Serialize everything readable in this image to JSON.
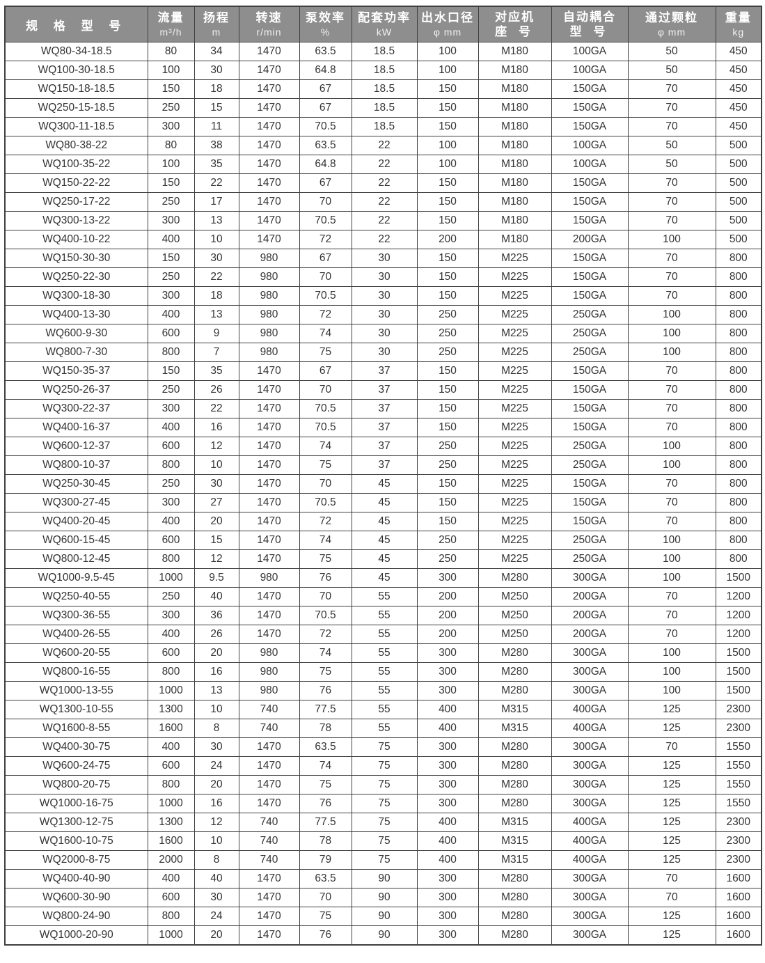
{
  "colors": {
    "header_bg": "#8e8e8e",
    "header_text": "#ffffff",
    "border": "#3f3f3f",
    "text": "#333333",
    "page_bg": "#ffffff"
  },
  "table": {
    "columns": [
      {
        "id": "model",
        "label": "规 格 型 号",
        "unit": ""
      },
      {
        "id": "flow",
        "label": "流量",
        "unit": "m³/h"
      },
      {
        "id": "head",
        "label": "扬程",
        "unit": "m"
      },
      {
        "id": "speed",
        "label": "转速",
        "unit": "r/min"
      },
      {
        "id": "pump-efficiency",
        "label": "泵效率",
        "unit": "%"
      },
      {
        "id": "motor-power",
        "label": "配套功率",
        "unit": "kW"
      },
      {
        "id": "outlet-diameter",
        "label": "出水口径",
        "unit": "φ mm"
      },
      {
        "id": "frame-size",
        "label": "对应机",
        "unit": "座 号"
      },
      {
        "id": "auto-coupling",
        "label": "自动耦合",
        "unit": "型 号"
      },
      {
        "id": "particle-size",
        "label": "通过颗粒",
        "unit": "φ mm"
      },
      {
        "id": "weight",
        "label": "重量",
        "unit": "kg"
      }
    ],
    "rows": [
      [
        "WQ80-34-18.5",
        "80",
        "34",
        "1470",
        "63.5",
        "18.5",
        "100",
        "M180",
        "100GA",
        "50",
        "450"
      ],
      [
        "WQ100-30-18.5",
        "100",
        "30",
        "1470",
        "64.8",
        "18.5",
        "100",
        "M180",
        "100GA",
        "50",
        "450"
      ],
      [
        "WQ150-18-18.5",
        "150",
        "18",
        "1470",
        "67",
        "18.5",
        "150",
        "M180",
        "150GA",
        "70",
        "450"
      ],
      [
        "WQ250-15-18.5",
        "250",
        "15",
        "1470",
        "67",
        "18.5",
        "150",
        "M180",
        "150GA",
        "70",
        "450"
      ],
      [
        "WQ300-11-18.5",
        "300",
        "11",
        "1470",
        "70.5",
        "18.5",
        "150",
        "M180",
        "150GA",
        "70",
        "450"
      ],
      [
        "WQ80-38-22",
        "80",
        "38",
        "1470",
        "63.5",
        "22",
        "100",
        "M180",
        "100GA",
        "50",
        "500"
      ],
      [
        "WQ100-35-22",
        "100",
        "35",
        "1470",
        "64.8",
        "22",
        "100",
        "M180",
        "100GA",
        "50",
        "500"
      ],
      [
        "WQ150-22-22",
        "150",
        "22",
        "1470",
        "67",
        "22",
        "150",
        "M180",
        "150GA",
        "70",
        "500"
      ],
      [
        "WQ250-17-22",
        "250",
        "17",
        "1470",
        "70",
        "22",
        "150",
        "M180",
        "150GA",
        "70",
        "500"
      ],
      [
        "WQ300-13-22",
        "300",
        "13",
        "1470",
        "70.5",
        "22",
        "150",
        "M180",
        "150GA",
        "70",
        "500"
      ],
      [
        "WQ400-10-22",
        "400",
        "10",
        "1470",
        "72",
        "22",
        "200",
        "M180",
        "200GA",
        "100",
        "500"
      ],
      [
        "WQ150-30-30",
        "150",
        "30",
        "980",
        "67",
        "30",
        "150",
        "M225",
        "150GA",
        "70",
        "800"
      ],
      [
        "WQ250-22-30",
        "250",
        "22",
        "980",
        "70",
        "30",
        "150",
        "M225",
        "150GA",
        "70",
        "800"
      ],
      [
        "WQ300-18-30",
        "300",
        "18",
        "980",
        "70.5",
        "30",
        "150",
        "M225",
        "150GA",
        "70",
        "800"
      ],
      [
        "WQ400-13-30",
        "400",
        "13",
        "980",
        "72",
        "30",
        "250",
        "M225",
        "250GA",
        "100",
        "800"
      ],
      [
        "WQ600-9-30",
        "600",
        "9",
        "980",
        "74",
        "30",
        "250",
        "M225",
        "250GA",
        "100",
        "800"
      ],
      [
        "WQ800-7-30",
        "800",
        "7",
        "980",
        "75",
        "30",
        "250",
        "M225",
        "250GA",
        "100",
        "800"
      ],
      [
        "WQ150-35-37",
        "150",
        "35",
        "1470",
        "67",
        "37",
        "150",
        "M225",
        "150GA",
        "70",
        "800"
      ],
      [
        "WQ250-26-37",
        "250",
        "26",
        "1470",
        "70",
        "37",
        "150",
        "M225",
        "150GA",
        "70",
        "800"
      ],
      [
        "WQ300-22-37",
        "300",
        "22",
        "1470",
        "70.5",
        "37",
        "150",
        "M225",
        "150GA",
        "70",
        "800"
      ],
      [
        "WQ400-16-37",
        "400",
        "16",
        "1470",
        "70.5",
        "37",
        "150",
        "M225",
        "150GA",
        "70",
        "800"
      ],
      [
        "WQ600-12-37",
        "600",
        "12",
        "1470",
        "74",
        "37",
        "250",
        "M225",
        "250GA",
        "100",
        "800"
      ],
      [
        "WQ800-10-37",
        "800",
        "10",
        "1470",
        "75",
        "37",
        "250",
        "M225",
        "250GA",
        "100",
        "800"
      ],
      [
        "WQ250-30-45",
        "250",
        "30",
        "1470",
        "70",
        "45",
        "150",
        "M225",
        "150GA",
        "70",
        "800"
      ],
      [
        "WQ300-27-45",
        "300",
        "27",
        "1470",
        "70.5",
        "45",
        "150",
        "M225",
        "150GA",
        "70",
        "800"
      ],
      [
        "WQ400-20-45",
        "400",
        "20",
        "1470",
        "72",
        "45",
        "150",
        "M225",
        "150GA",
        "70",
        "800"
      ],
      [
        "WQ600-15-45",
        "600",
        "15",
        "1470",
        "74",
        "45",
        "250",
        "M225",
        "250GA",
        "100",
        "800"
      ],
      [
        "WQ800-12-45",
        "800",
        "12",
        "1470",
        "75",
        "45",
        "250",
        "M225",
        "250GA",
        "100",
        "800"
      ],
      [
        "WQ1000-9.5-45",
        "1000",
        "9.5",
        "980",
        "76",
        "45",
        "300",
        "M280",
        "300GA",
        "100",
        "1500"
      ],
      [
        "WQ250-40-55",
        "250",
        "40",
        "1470",
        "70",
        "55",
        "200",
        "M250",
        "200GA",
        "70",
        "1200"
      ],
      [
        "WQ300-36-55",
        "300",
        "36",
        "1470",
        "70.5",
        "55",
        "200",
        "M250",
        "200GA",
        "70",
        "1200"
      ],
      [
        "WQ400-26-55",
        "400",
        "26",
        "1470",
        "72",
        "55",
        "200",
        "M250",
        "200GA",
        "70",
        "1200"
      ],
      [
        "WQ600-20-55",
        "600",
        "20",
        "980",
        "74",
        "55",
        "300",
        "M280",
        "300GA",
        "100",
        "1500"
      ],
      [
        "WQ800-16-55",
        "800",
        "16",
        "980",
        "75",
        "55",
        "300",
        "M280",
        "300GA",
        "100",
        "1500"
      ],
      [
        "WQ1000-13-55",
        "1000",
        "13",
        "980",
        "76",
        "55",
        "300",
        "M280",
        "300GA",
        "100",
        "1500"
      ],
      [
        "WQ1300-10-55",
        "1300",
        "10",
        "740",
        "77.5",
        "55",
        "400",
        "M315",
        "400GA",
        "125",
        "2300"
      ],
      [
        "WQ1600-8-55",
        "1600",
        "8",
        "740",
        "78",
        "55",
        "400",
        "M315",
        "400GA",
        "125",
        "2300"
      ],
      [
        "WQ400-30-75",
        "400",
        "30",
        "1470",
        "63.5",
        "75",
        "300",
        "M280",
        "300GA",
        "70",
        "1550"
      ],
      [
        "WQ600-24-75",
        "600",
        "24",
        "1470",
        "74",
        "75",
        "300",
        "M280",
        "300GA",
        "125",
        "1550"
      ],
      [
        "WQ800-20-75",
        "800",
        "20",
        "1470",
        "75",
        "75",
        "300",
        "M280",
        "300GA",
        "125",
        "1550"
      ],
      [
        "WQ1000-16-75",
        "1000",
        "16",
        "1470",
        "76",
        "75",
        "300",
        "M280",
        "300GA",
        "125",
        "1550"
      ],
      [
        "WQ1300-12-75",
        "1300",
        "12",
        "740",
        "77.5",
        "75",
        "400",
        "M315",
        "400GA",
        "125",
        "2300"
      ],
      [
        "WQ1600-10-75",
        "1600",
        "10",
        "740",
        "78",
        "75",
        "400",
        "M315",
        "400GA",
        "125",
        "2300"
      ],
      [
        "WQ2000-8-75",
        "2000",
        "8",
        "740",
        "79",
        "75",
        "400",
        "M315",
        "400GA",
        "125",
        "2300"
      ],
      [
        "WQ400-40-90",
        "400",
        "40",
        "1470",
        "63.5",
        "90",
        "300",
        "M280",
        "300GA",
        "70",
        "1600"
      ],
      [
        "WQ600-30-90",
        "600",
        "30",
        "1470",
        "70",
        "90",
        "300",
        "M280",
        "300GA",
        "70",
        "1600"
      ],
      [
        "WQ800-24-90",
        "800",
        "24",
        "1470",
        "75",
        "90",
        "300",
        "M280",
        "300GA",
        "125",
        "1600"
      ],
      [
        "WQ1000-20-90",
        "1000",
        "20",
        "1470",
        "76",
        "90",
        "300",
        "M280",
        "300GA",
        "125",
        "1600"
      ]
    ]
  }
}
